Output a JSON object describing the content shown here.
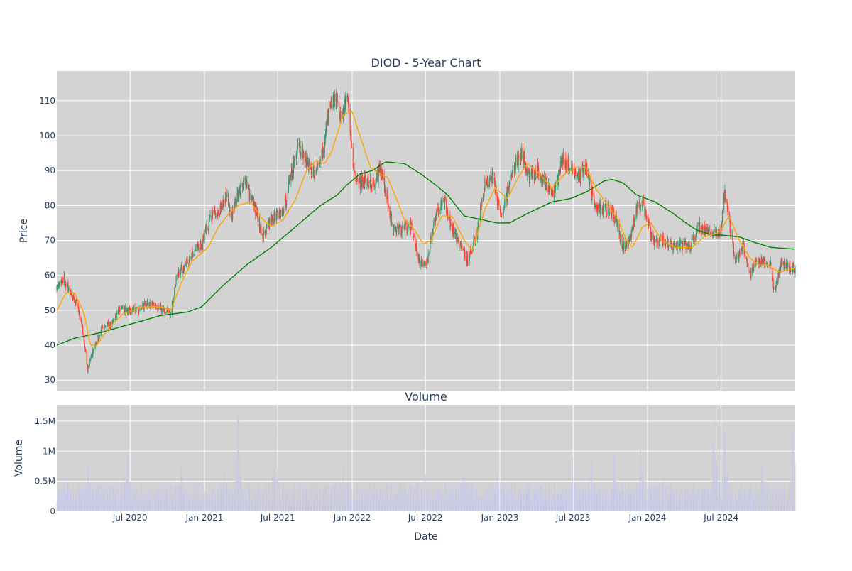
{
  "chart_data": [
    {
      "type": "candlestick",
      "title": "DIOD - 5-Year Chart",
      "xlabel": "",
      "ylabel": "Price",
      "ylim": [
        27,
        118.5
      ],
      "yticks": [
        30,
        40,
        50,
        60,
        70,
        80,
        90,
        100,
        110
      ],
      "x_range": [
        "2020-01-02",
        "2024-12-31"
      ],
      "grid": true,
      "legend": "none",
      "colors": {
        "up": "#3d9970",
        "down": "#ff4136",
        "ma_short": "#ffa500",
        "ma_long": "#008000",
        "background": "#d3d3d3",
        "grid": "#ffffff"
      },
      "price_anchors": [
        [
          "2020-01-02",
          57
        ],
        [
          "2020-01-20",
          59
        ],
        [
          "2020-02-05",
          55
        ],
        [
          "2020-02-20",
          52
        ],
        [
          "2020-03-05",
          45
        ],
        [
          "2020-03-18",
          33
        ],
        [
          "2020-03-25",
          36
        ],
        [
          "2020-04-05",
          40
        ],
        [
          "2020-04-25",
          46
        ],
        [
          "2020-05-15",
          46
        ],
        [
          "2020-06-05",
          50
        ],
        [
          "2020-06-25",
          50
        ],
        [
          "2020-07-20",
          50
        ],
        [
          "2020-08-10",
          52
        ],
        [
          "2020-09-05",
          51
        ],
        [
          "2020-09-25",
          50
        ],
        [
          "2020-10-10",
          49
        ],
        [
          "2020-10-25",
          61
        ],
        [
          "2020-11-15",
          62
        ],
        [
          "2020-12-05",
          67
        ],
        [
          "2020-12-25",
          69
        ],
        [
          "2021-01-15",
          77
        ],
        [
          "2021-02-10",
          79
        ],
        [
          "2021-02-25",
          83
        ],
        [
          "2021-03-10",
          77
        ],
        [
          "2021-03-25",
          83
        ],
        [
          "2021-04-10",
          88
        ],
        [
          "2021-04-25",
          82
        ],
        [
          "2021-05-10",
          78
        ],
        [
          "2021-05-25",
          71
        ],
        [
          "2021-06-10",
          75
        ],
        [
          "2021-06-25",
          77
        ],
        [
          "2021-07-15",
          78
        ],
        [
          "2021-08-05",
          90
        ],
        [
          "2021-08-20",
          97
        ],
        [
          "2021-09-10",
          93
        ],
        [
          "2021-09-25",
          89
        ],
        [
          "2021-10-15",
          92
        ],
        [
          "2021-11-05",
          108
        ],
        [
          "2021-11-20",
          111
        ],
        [
          "2021-12-05",
          104
        ],
        [
          "2021-12-20",
          112
        ],
        [
          "2022-01-05",
          90
        ],
        [
          "2022-01-20",
          86
        ],
        [
          "2022-02-05",
          88
        ],
        [
          "2022-02-20",
          85
        ],
        [
          "2022-03-10",
          91
        ],
        [
          "2022-03-25",
          84
        ],
        [
          "2022-04-10",
          74
        ],
        [
          "2022-05-05",
          73
        ],
        [
          "2022-05-25",
          75
        ],
        [
          "2022-06-15",
          64
        ],
        [
          "2022-07-05",
          63
        ],
        [
          "2022-07-25",
          77
        ],
        [
          "2022-08-15",
          82
        ],
        [
          "2022-09-05",
          73
        ],
        [
          "2022-09-25",
          69
        ],
        [
          "2022-10-15",
          64
        ],
        [
          "2022-11-05",
          72
        ],
        [
          "2022-11-25",
          86
        ],
        [
          "2022-12-15",
          88
        ],
        [
          "2023-01-05",
          76
        ],
        [
          "2023-01-20",
          84
        ],
        [
          "2023-02-10",
          93
        ],
        [
          "2023-02-25",
          95
        ],
        [
          "2023-03-15",
          88
        ],
        [
          "2023-04-05",
          90
        ],
        [
          "2023-04-25",
          86
        ],
        [
          "2023-05-15",
          84
        ],
        [
          "2023-06-05",
          93
        ],
        [
          "2023-06-25",
          91
        ],
        [
          "2023-07-15",
          88
        ],
        [
          "2023-08-05",
          91
        ],
        [
          "2023-08-20",
          81
        ],
        [
          "2023-09-10",
          79
        ],
        [
          "2023-09-25",
          79
        ],
        [
          "2023-10-15",
          76
        ],
        [
          "2023-11-01",
          68
        ],
        [
          "2023-11-15",
          69
        ],
        [
          "2023-12-05",
          79
        ],
        [
          "2023-12-20",
          81
        ],
        [
          "2024-01-05",
          73
        ],
        [
          "2024-01-20",
          69
        ],
        [
          "2024-02-10",
          70
        ],
        [
          "2024-03-05",
          68
        ],
        [
          "2024-03-25",
          69
        ],
        [
          "2024-04-15",
          68
        ],
        [
          "2024-05-05",
          74
        ],
        [
          "2024-05-25",
          73
        ],
        [
          "2024-06-15",
          72
        ],
        [
          "2024-06-30",
          72
        ],
        [
          "2024-07-10",
          84
        ],
        [
          "2024-07-25",
          72
        ],
        [
          "2024-08-05",
          64
        ],
        [
          "2024-08-25",
          68
        ],
        [
          "2024-09-10",
          60
        ],
        [
          "2024-09-25",
          64
        ],
        [
          "2024-10-15",
          64
        ],
        [
          "2024-11-01",
          63
        ],
        [
          "2024-11-10",
          54
        ],
        [
          "2024-11-25",
          64
        ],
        [
          "2024-12-10",
          63
        ],
        [
          "2024-12-31",
          62
        ]
      ],
      "ma_short_anchors": [
        [
          "2020-01-02",
          50
        ],
        [
          "2020-01-25",
          55
        ],
        [
          "2020-02-15",
          55
        ],
        [
          "2020-03-10",
          49
        ],
        [
          "2020-03-25",
          40
        ],
        [
          "2020-04-10",
          40
        ],
        [
          "2020-05-10",
          45
        ],
        [
          "2020-06-15",
          49
        ],
        [
          "2020-08-01",
          51
        ],
        [
          "2020-09-15",
          51
        ],
        [
          "2020-10-10",
          50
        ],
        [
          "2020-11-05",
          58
        ],
        [
          "2020-12-01",
          64
        ],
        [
          "2021-01-10",
          68
        ],
        [
          "2021-02-05",
          74
        ],
        [
          "2021-03-05",
          78
        ],
        [
          "2021-03-25",
          80
        ],
        [
          "2021-04-25",
          81
        ],
        [
          "2021-05-25",
          76
        ],
        [
          "2021-06-15",
          74
        ],
        [
          "2021-07-15",
          76
        ],
        [
          "2021-08-15",
          82
        ],
        [
          "2021-09-10",
          90
        ],
        [
          "2021-10-05",
          93
        ],
        [
          "2021-10-25",
          92
        ],
        [
          "2021-11-10",
          95
        ],
        [
          "2021-12-10",
          106
        ],
        [
          "2022-01-01",
          107
        ],
        [
          "2022-01-20",
          100
        ],
        [
          "2022-02-15",
          91
        ],
        [
          "2022-03-10",
          89
        ],
        [
          "2022-03-30",
          88
        ],
        [
          "2022-04-20",
          82
        ],
        [
          "2022-05-10",
          76
        ],
        [
          "2022-06-05",
          73
        ],
        [
          "2022-06-25",
          69
        ],
        [
          "2022-07-15",
          70
        ],
        [
          "2022-08-10",
          77
        ],
        [
          "2022-09-05",
          77
        ],
        [
          "2022-10-05",
          70
        ],
        [
          "2022-10-25",
          67
        ],
        [
          "2022-11-25",
          79
        ],
        [
          "2022-12-20",
          85
        ],
        [
          "2023-01-20",
          82
        ],
        [
          "2023-02-15",
          88
        ],
        [
          "2023-03-10",
          92
        ],
        [
          "2023-04-10",
          89
        ],
        [
          "2023-05-10",
          85
        ],
        [
          "2023-06-10",
          89
        ],
        [
          "2023-07-10",
          91
        ],
        [
          "2023-08-01",
          91
        ],
        [
          "2023-08-25",
          85
        ],
        [
          "2023-09-25",
          80
        ],
        [
          "2023-10-20",
          76
        ],
        [
          "2023-11-10",
          70
        ],
        [
          "2023-11-25",
          68
        ],
        [
          "2023-12-20",
          74
        ],
        [
          "2024-01-10",
          75
        ],
        [
          "2024-02-05",
          70
        ],
        [
          "2024-03-10",
          68
        ],
        [
          "2024-04-20",
          68
        ],
        [
          "2024-05-20",
          71
        ],
        [
          "2024-06-20",
          72
        ],
        [
          "2024-07-01",
          73
        ],
        [
          "2024-07-20",
          77
        ],
        [
          "2024-08-15",
          70
        ],
        [
          "2024-09-10",
          65
        ],
        [
          "2024-10-01",
          63
        ],
        [
          "2024-10-25",
          63
        ],
        [
          "2024-11-20",
          61
        ],
        [
          "2024-12-31",
          62
        ]
      ],
      "ma_long_anchors": [
        [
          "2020-01-02",
          40
        ],
        [
          "2020-02-15",
          42
        ],
        [
          "2020-04-15",
          43.5
        ],
        [
          "2020-07-01",
          46
        ],
        [
          "2020-09-15",
          48.5
        ],
        [
          "2020-11-20",
          49.5
        ],
        [
          "2020-12-25",
          51
        ],
        [
          "2021-02-15",
          57
        ],
        [
          "2021-04-15",
          63
        ],
        [
          "2021-06-15",
          68
        ],
        [
          "2021-08-15",
          74
        ],
        [
          "2021-10-15",
          80
        ],
        [
          "2021-11-25",
          83
        ],
        [
          "2021-12-20",
          86
        ],
        [
          "2022-01-20",
          89
        ],
        [
          "2022-02-20",
          90
        ],
        [
          "2022-03-25",
          92.5
        ],
        [
          "2022-05-10",
          92
        ],
        [
          "2022-06-20",
          89
        ],
        [
          "2022-07-25",
          86
        ],
        [
          "2022-08-25",
          83
        ],
        [
          "2022-10-05",
          77
        ],
        [
          "2022-11-15",
          76
        ],
        [
          "2022-12-25",
          75
        ],
        [
          "2023-01-25",
          75
        ],
        [
          "2023-03-15",
          78
        ],
        [
          "2023-05-10",
          81
        ],
        [
          "2023-06-25",
          82
        ],
        [
          "2023-08-05",
          84
        ],
        [
          "2023-09-15",
          87
        ],
        [
          "2023-10-05",
          87.5
        ],
        [
          "2023-11-01",
          86.5
        ],
        [
          "2023-12-05",
          83
        ],
        [
          "2024-01-20",
          81
        ],
        [
          "2024-03-01",
          78
        ],
        [
          "2024-04-05",
          75
        ],
        [
          "2024-05-01",
          73
        ],
        [
          "2024-06-10",
          71.5
        ],
        [
          "2024-07-05",
          71.5
        ],
        [
          "2024-08-15",
          71
        ],
        [
          "2024-09-20",
          69.5
        ],
        [
          "2024-11-01",
          68
        ],
        [
          "2024-12-31",
          67.5
        ]
      ]
    },
    {
      "type": "bar",
      "title": "Volume",
      "xlabel": "Date",
      "ylabel": "Volume",
      "ylim": [
        0,
        1770000
      ],
      "yticks": [
        0,
        500000,
        1000000,
        1500000
      ],
      "ytick_labels": [
        "0",
        "0.5M",
        "1M",
        "1.5M"
      ],
      "x_range": [
        "2020-01-02",
        "2024-12-31"
      ],
      "xticks": [
        "2020-07-01",
        "2021-01-01",
        "2021-07-01",
        "2022-01-01",
        "2022-07-01",
        "2023-01-01",
        "2023-07-01",
        "2024-01-01",
        "2024-07-01"
      ],
      "xtick_labels": [
        "Jul 2020",
        "Jan 2021",
        "Jul 2021",
        "Jan 2022",
        "Jul 2022",
        "Jan 2023",
        "Jul 2023",
        "Jan 2024",
        "Jul 2024"
      ],
      "color": "#c8c8e8",
      "typical_volume_range": [
        150000,
        500000
      ],
      "volume_spikes": [
        [
          "2020-03-20",
          740000
        ],
        [
          "2020-06-25",
          930000
        ],
        [
          "2020-11-05",
          780000
        ],
        [
          "2021-02-20",
          740000
        ],
        [
          "2021-03-25",
          1580000
        ],
        [
          "2021-06-25",
          1220000
        ],
        [
          "2021-12-10",
          760000
        ],
        [
          "2022-07-01",
          620000
        ],
        [
          "2022-10-01",
          860000
        ],
        [
          "2022-12-25",
          660000
        ],
        [
          "2023-07-01",
          900000
        ],
        [
          "2023-08-15",
          830000
        ],
        [
          "2023-10-10",
          930000
        ],
        [
          "2023-12-15",
          1030000
        ],
        [
          "2024-02-10",
          620000
        ],
        [
          "2024-06-15",
          1750000
        ],
        [
          "2024-07-10",
          1290000
        ],
        [
          "2024-10-10",
          790000
        ],
        [
          "2024-12-25",
          1270000
        ]
      ]
    }
  ]
}
